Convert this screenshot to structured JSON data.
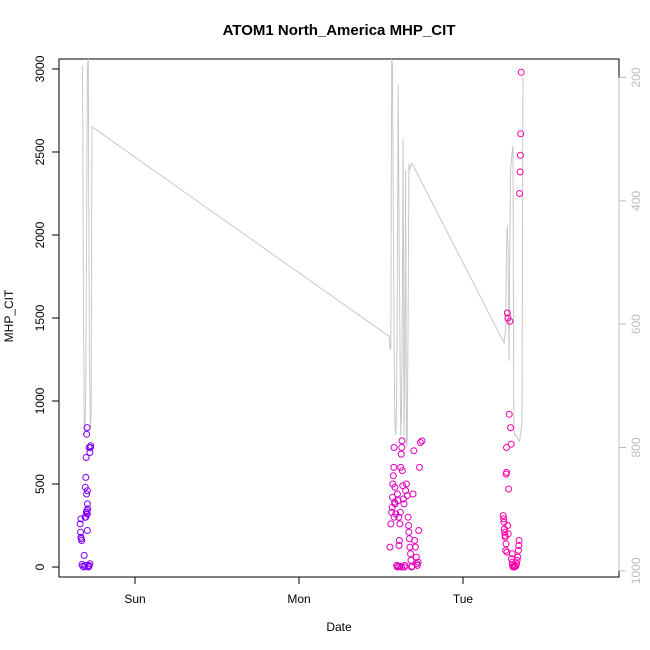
{
  "chart_data": {
    "type": "scatter",
    "title": "ATOM1 North_America MHP_CIT",
    "xlabel": "Date",
    "ylabel": "MHP_CIT",
    "x_ticks": [
      "Sun",
      "Mon",
      "Tue"
    ],
    "y_ticks": [
      0,
      500,
      1000,
      1500,
      2000,
      2500,
      3000
    ],
    "ylim": [
      -60,
      3060
    ],
    "y2_ticks": [
      200,
      400,
      600,
      800,
      1000
    ],
    "y2lim": [
      1010,
      170
    ],
    "y2_reversed": true,
    "grid": false,
    "colors": {
      "points_start": "#7f00ff",
      "points_end": "#ff00a6",
      "line": "#c8c8c8",
      "axis": "#000000",
      "right_axis": "#bdbdbd"
    },
    "secondary_line": {
      "name": "",
      "points": [
        [
          -0.32,
          180
        ],
        [
          -0.315,
          500
        ],
        [
          -0.31,
          760
        ],
        [
          -0.305,
          780
        ],
        [
          -0.3,
          700
        ],
        [
          -0.295,
          450
        ],
        [
          -0.29,
          180
        ],
        [
          -0.285,
          170
        ],
        [
          -0.278,
          650
        ],
        [
          -0.272,
          770
        ],
        [
          -0.267,
          740
        ],
        [
          -0.262,
          280
        ],
        [
          1.55,
          620
        ],
        [
          1.555,
          640
        ],
        [
          1.56,
          640
        ],
        [
          1.565,
          170
        ],
        [
          1.57,
          180
        ],
        [
          1.58,
          640
        ],
        [
          1.585,
          760
        ],
        [
          1.59,
          780
        ],
        [
          1.595,
          730
        ],
        [
          1.6,
          500
        ],
        [
          1.605,
          210
        ],
        [
          1.61,
          440
        ],
        [
          1.62,
          780
        ],
        [
          1.625,
          750
        ],
        [
          1.63,
          560
        ],
        [
          1.635,
          300
        ],
        [
          1.64,
          780
        ],
        [
          1.645,
          660
        ],
        [
          1.65,
          350
        ],
        [
          1.655,
          800
        ],
        [
          1.66,
          790
        ],
        [
          1.665,
          600
        ],
        [
          1.67,
          340
        ],
        [
          1.675,
          350
        ],
        [
          1.685,
          340
        ],
        [
          1.69,
          340
        ],
        [
          1.7,
          345
        ],
        [
          2.25,
          630
        ],
        [
          2.26,
          610
        ],
        [
          2.265,
          480
        ],
        [
          2.27,
          440
        ],
        [
          2.275,
          480
        ],
        [
          2.278,
          590
        ],
        [
          2.281,
          660
        ],
        [
          2.285,
          500
        ],
        [
          2.29,
          350
        ],
        [
          2.3,
          320
        ],
        [
          2.305,
          310
        ],
        [
          2.31,
          770
        ],
        [
          2.315,
          780
        ],
        [
          2.325,
          780
        ],
        [
          2.34,
          790
        ],
        [
          2.345,
          790
        ],
        [
          2.355,
          770
        ],
        [
          2.36,
          760
        ],
        [
          2.365,
          200
        ]
      ]
    },
    "series": [
      {
        "name": "",
        "points": [
          [
            -0.33,
            180
          ],
          [
            -0.332,
            210
          ],
          [
            -0.335,
            260
          ],
          [
            -0.33,
            290
          ],
          [
            -0.328,
            170
          ],
          [
            -0.325,
            160
          ],
          [
            -0.323,
            15
          ],
          [
            -0.318,
            5
          ],
          [
            -0.31,
            0
          ],
          [
            -0.305,
            10
          ],
          [
            -0.31,
            70
          ],
          [
            -0.305,
            300
          ],
          [
            -0.303,
            480
          ],
          [
            -0.3,
            540
          ],
          [
            -0.298,
            660
          ],
          [
            -0.295,
            800
          ],
          [
            -0.292,
            840
          ],
          [
            -0.29,
            460
          ],
          [
            -0.295,
            440
          ],
          [
            -0.29,
            380
          ],
          [
            -0.288,
            350
          ],
          [
            -0.29,
            320
          ],
          [
            -0.292,
            320
          ],
          [
            -0.293,
            340
          ],
          [
            -0.297,
            330
          ],
          [
            -0.3,
            300
          ],
          [
            -0.29,
            220
          ],
          [
            -0.285,
            0
          ],
          [
            -0.282,
            10
          ],
          [
            -0.28,
            5
          ],
          [
            -0.275,
            20
          ],
          [
            -0.272,
            720
          ],
          [
            -0.27,
            730
          ],
          [
            -0.275,
            690
          ],
          [
            -0.28,
            720
          ]
        ]
      },
      {
        "name": "",
        "points": [
          [
            1.555,
            120
          ],
          [
            1.56,
            260
          ],
          [
            1.565,
            330
          ],
          [
            1.568,
            360
          ],
          [
            1.57,
            420
          ],
          [
            1.572,
            500
          ],
          [
            1.575,
            550
          ],
          [
            1.578,
            600
          ],
          [
            1.58,
            720
          ],
          [
            1.583,
            390
          ],
          [
            1.586,
            380
          ],
          [
            1.59,
            320
          ],
          [
            1.595,
            10
          ],
          [
            1.6,
            0
          ],
          [
            1.605,
            5
          ],
          [
            1.61,
            130
          ],
          [
            1.612,
            160
          ],
          [
            1.615,
            260
          ],
          [
            1.618,
            330
          ],
          [
            1.62,
            600
          ],
          [
            1.623,
            680
          ],
          [
            1.626,
            720
          ],
          [
            1.628,
            760
          ],
          [
            1.63,
            580
          ],
          [
            1.633,
            490
          ],
          [
            1.636,
            410
          ],
          [
            1.64,
            380
          ],
          [
            1.642,
            0
          ],
          [
            1.646,
            10
          ],
          [
            1.65,
            460
          ],
          [
            1.655,
            500
          ],
          [
            1.66,
            430
          ],
          [
            1.665,
            300
          ],
          [
            1.668,
            250
          ],
          [
            1.67,
            210
          ],
          [
            1.673,
            170
          ],
          [
            1.676,
            120
          ],
          [
            1.68,
            80
          ],
          [
            1.683,
            40
          ],
          [
            1.686,
            0
          ],
          [
            1.69,
            5
          ],
          [
            1.695,
            440
          ],
          [
            1.7,
            700
          ],
          [
            1.705,
            160
          ],
          [
            1.71,
            120
          ],
          [
            1.715,
            60
          ],
          [
            1.718,
            20
          ],
          [
            1.722,
            10
          ],
          [
            1.726,
            30
          ],
          [
            1.73,
            220
          ],
          [
            1.735,
            600
          ],
          [
            1.74,
            750
          ],
          [
            1.75,
            760
          ],
          [
            1.625,
            0
          ],
          [
            1.615,
            5
          ],
          [
            1.6,
            440
          ],
          [
            1.603,
            400
          ],
          [
            1.608,
            300
          ],
          [
            1.58,
            300
          ],
          [
            1.585,
            480
          ]
        ]
      },
      {
        "name": "",
        "points": [
          [
            2.245,
            310
          ],
          [
            2.248,
            290
          ],
          [
            2.25,
            270
          ],
          [
            2.252,
            230
          ],
          [
            2.254,
            210
          ],
          [
            2.256,
            190
          ],
          [
            2.258,
            180
          ],
          [
            2.26,
            100
          ],
          [
            2.263,
            560
          ],
          [
            2.266,
            570
          ],
          [
            2.27,
            1530
          ],
          [
            2.274,
            1500
          ],
          [
            2.278,
            470
          ],
          [
            2.282,
            920
          ],
          [
            2.286,
            1480
          ],
          [
            2.29,
            840
          ],
          [
            2.294,
            740
          ],
          [
            2.296,
            50
          ],
          [
            2.3,
            30
          ],
          [
            2.302,
            10
          ],
          [
            2.306,
            0
          ],
          [
            2.31,
            5
          ],
          [
            2.314,
            0
          ],
          [
            2.318,
            10
          ],
          [
            2.322,
            5
          ],
          [
            2.326,
            20
          ],
          [
            2.33,
            40
          ],
          [
            2.334,
            60
          ],
          [
            2.338,
            100
          ],
          [
            2.34,
            130
          ],
          [
            2.342,
            160
          ],
          [
            2.345,
            2250
          ],
          [
            2.348,
            2380
          ],
          [
            2.35,
            2480
          ],
          [
            2.352,
            2610
          ],
          [
            2.355,
            2980
          ],
          [
            2.265,
            720
          ],
          [
            2.272,
            250
          ],
          [
            2.276,
            200
          ],
          [
            2.262,
            140
          ],
          [
            2.268,
            90
          ],
          [
            2.3,
            80
          ]
        ]
      }
    ]
  }
}
